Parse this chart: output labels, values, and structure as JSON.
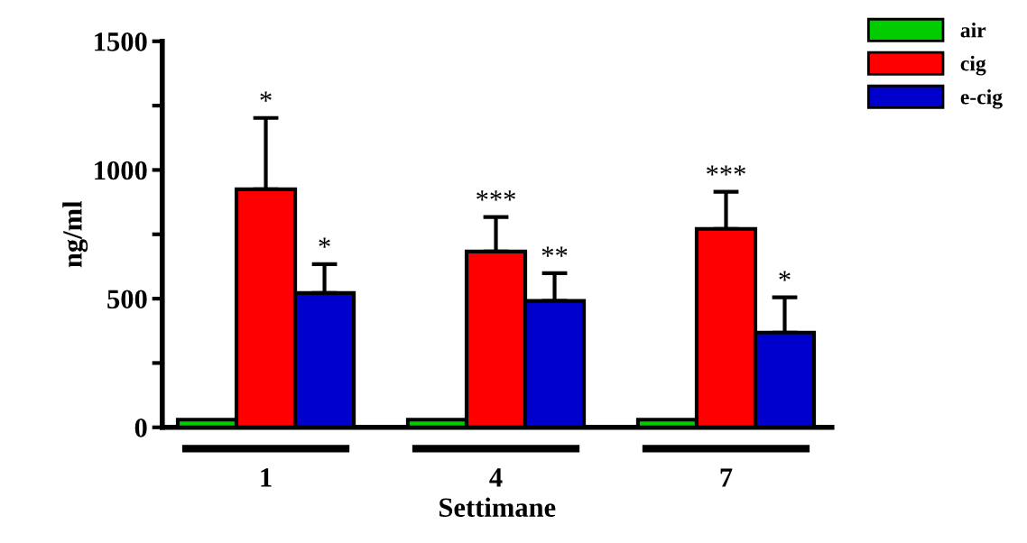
{
  "chart_data": {
    "type": "bar",
    "xlabel": "Settimane",
    "ylabel": "ng/ml",
    "categories": [
      "1",
      "4",
      "7"
    ],
    "series": [
      {
        "name": "air",
        "color": "#00cc00",
        "values": [
          30,
          30,
          30
        ]
      },
      {
        "name": "cig",
        "color": "#ff0000",
        "values": [
          925,
          683,
          771
        ],
        "errors": [
          277,
          134,
          144
        ]
      },
      {
        "name": "e-cig",
        "color": "#0000cc",
        "values": [
          522,
          491,
          368
        ],
        "errors": [
          112,
          108,
          137
        ]
      }
    ],
    "ylim": [
      0,
      1500
    ],
    "yticks": [
      0,
      {
        "value": 250,
        "label": null
      },
      500,
      {
        "value": 750,
        "label": null
      },
      1000,
      {
        "value": 1250,
        "label": null
      },
      1500
    ],
    "annotations": [
      {
        "text": "*",
        "x": "1",
        "y": 1202
      },
      "*",
      {
        "text": "***",
        "x": "4",
        "y": 817
      },
      "**",
      {
        "text": "***",
        "x": "7",
        "y": 915
      },
      "*"
    ],
    "grid": false,
    "legend": "top right"
  }
}
